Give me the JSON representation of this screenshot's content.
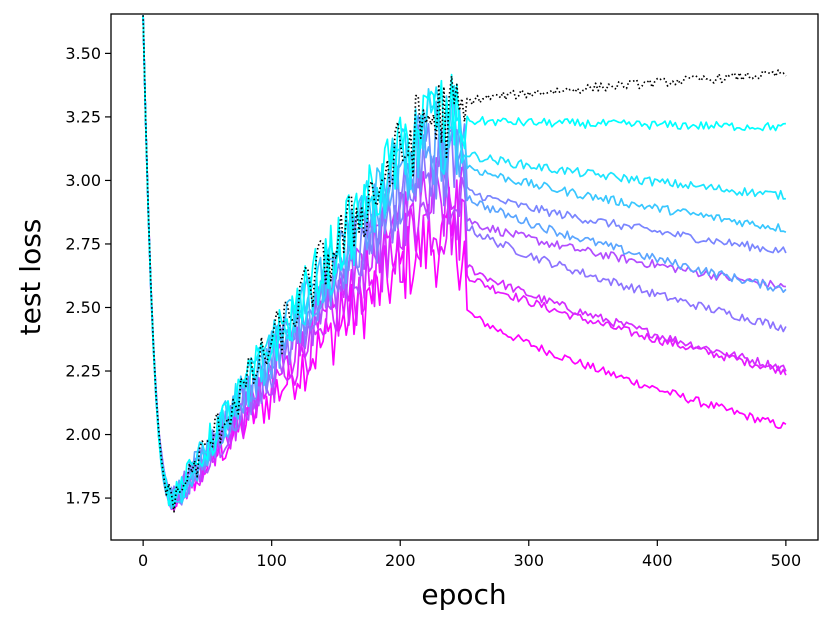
{
  "chart_data": {
    "type": "line",
    "title": "",
    "xlabel": "epoch",
    "ylabel": "test loss",
    "xlim": [
      -25,
      525
    ],
    "ylim": [
      1.585,
      3.655
    ],
    "xticks": [
      0,
      100,
      200,
      300,
      400,
      500
    ],
    "xtick_labels": [
      "0",
      "100",
      "200",
      "300",
      "400",
      "500"
    ],
    "yticks": [
      1.75,
      2.0,
      2.25,
      2.5,
      2.75,
      3.0,
      3.25,
      3.5
    ],
    "ytick_labels": [
      "1.75",
      "2.00",
      "2.25",
      "2.50",
      "2.75",
      "3.00",
      "3.25",
      "3.50"
    ],
    "grid": false,
    "legend": "none",
    "series": [
      {
        "color": "#ff00ff",
        "style": "solid",
        "final_value": 2.03,
        "peak_phase_center": 2.75
      },
      {
        "color": "#e619ff",
        "style": "solid",
        "final_value": 2.25,
        "peak_phase_center": 2.85
      },
      {
        "color": "#d42bff",
        "style": "solid",
        "final_value": 2.26,
        "peak_phase_center": 2.9
      },
      {
        "color": "#b34cff",
        "style": "solid",
        "final_value": 2.58,
        "peak_phase_center": 3.0
      },
      {
        "color": "#8c73ff",
        "style": "solid",
        "final_value": 2.42,
        "peak_phase_center": 3.05
      },
      {
        "color": "#7a85ff",
        "style": "solid",
        "final_value": 2.72,
        "peak_phase_center": 3.1
      },
      {
        "color": "#5aa5ff",
        "style": "solid",
        "final_value": 2.57,
        "peak_phase_center": 3.15
      },
      {
        "color": "#38c7ff",
        "style": "solid",
        "final_value": 2.81,
        "peak_phase_center": 3.2
      },
      {
        "color": "#1ae5ff",
        "style": "solid",
        "final_value": 2.94,
        "peak_phase_center": 3.2
      },
      {
        "color": "#00ffff",
        "style": "solid",
        "final_value": 3.21,
        "peak_phase_center": 3.25
      },
      {
        "color": "#000000",
        "style": "dotted",
        "final_value": 3.42,
        "peak_phase_center": 3.25
      }
    ],
    "shared_shape": {
      "start_value": 3.65,
      "minimum_epoch": 25,
      "minimum_value": 1.75,
      "switch_epoch": 250,
      "end_epoch": 500
    }
  }
}
